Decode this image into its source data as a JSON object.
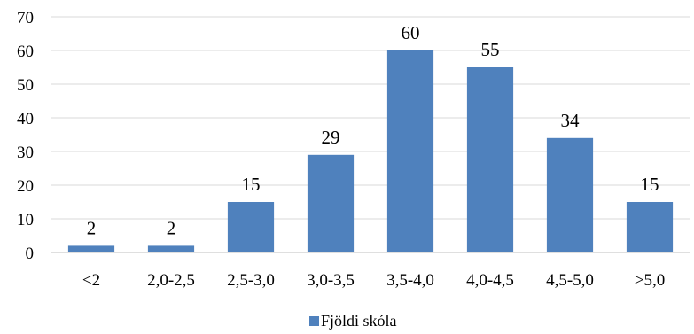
{
  "chart_data": {
    "type": "bar",
    "categories": [
      "<2",
      "2,0-2,5",
      "2,5-3,0",
      "3,0-3,5",
      "3,5-4,0",
      "4,0-4,5",
      "4,5-5,0",
      ">5,0"
    ],
    "series": [
      {
        "name": "Fjöldi skóla",
        "values": [
          2,
          2,
          15,
          29,
          60,
          55,
          34,
          15
        ],
        "color": "#4f81bd"
      }
    ],
    "ylim": [
      0,
      70
    ],
    "yticks": [
      0,
      10,
      20,
      30,
      40,
      50,
      60,
      70
    ],
    "grid": true,
    "gridColor": "#d9d9d9",
    "legend": "bottom"
  }
}
